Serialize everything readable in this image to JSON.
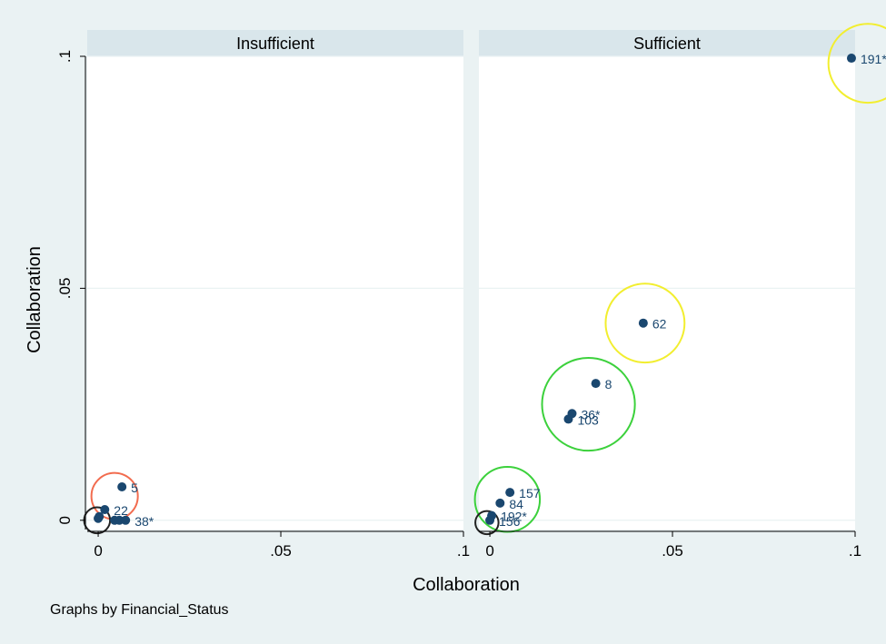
{
  "note": "Graphs by Financial_Status",
  "chart_data": {
    "type": "scatter",
    "by": "Financial_Status",
    "xlabel": "Collaboration",
    "ylabel": "Collaboration",
    "xlim": [
      -0.003,
      0.1
    ],
    "ylim": [
      -0.002,
      0.1
    ],
    "xticks": [
      {
        "value": 0,
        "label": "0"
      },
      {
        "value": 0.05,
        "label": ".05"
      },
      {
        "value": 0.1,
        "label": ".1"
      }
    ],
    "yticks": [
      {
        "value": 0,
        "label": "0"
      },
      {
        "value": 0.05,
        "label": ".05"
      },
      {
        "value": 0.1,
        "label": ".1"
      }
    ],
    "grid": true,
    "panels": [
      {
        "title": "Insufficient",
        "points": [
          {
            "x": 0.0065,
            "y": 0.0072,
            "label": "5"
          },
          {
            "x": 0.0018,
            "y": 0.0023,
            "label": "22"
          },
          {
            "x": 0.0,
            "y": 0.0004,
            "label": ""
          },
          {
            "x": 0.0003,
            "y": 0.0008,
            "label": ""
          },
          {
            "x": 0.0045,
            "y": 0.0,
            "label": ""
          },
          {
            "x": 0.0058,
            "y": 0.0,
            "label": ""
          },
          {
            "x": 0.0075,
            "y": 0.0,
            "label": "38*"
          }
        ],
        "circles": [
          {
            "cx": 0.0045,
            "cy": 0.0052,
            "r": 0.005,
            "color": "#f26c4f"
          },
          {
            "cx": -0.0003,
            "cy": 0.0,
            "r": 0.0028,
            "color": "#222222"
          }
        ]
      },
      {
        "title": "Sufficient",
        "points": [
          {
            "x": 0.099,
            "y": 0.0996,
            "label": "191*"
          },
          {
            "x": 0.042,
            "y": 0.0425,
            "label": "62"
          },
          {
            "x": 0.029,
            "y": 0.0295,
            "label": "8"
          },
          {
            "x": 0.0225,
            "y": 0.023,
            "label": "36*"
          },
          {
            "x": 0.0215,
            "y": 0.0218,
            "label": "103"
          },
          {
            "x": 0.0055,
            "y": 0.006,
            "label": "157"
          },
          {
            "x": 0.0028,
            "y": 0.0037,
            "label": "84"
          },
          {
            "x": 0.0005,
            "y": 0.001,
            "label": "192*"
          },
          {
            "x": 0.0,
            "y": 0.0,
            "label": "156"
          }
        ],
        "circles": [
          {
            "cx": 0.1035,
            "cy": 0.0985,
            "r": 0.0085,
            "color": "#f2ee2f"
          },
          {
            "cx": 0.0425,
            "cy": 0.0425,
            "r": 0.0085,
            "color": "#f2ee2f"
          },
          {
            "cx": 0.027,
            "cy": 0.025,
            "r": 0.01,
            "color": "#3cd13c"
          },
          {
            "cx": 0.0048,
            "cy": 0.0045,
            "r": 0.007,
            "color": "#3cd13c"
          },
          {
            "cx": -0.0008,
            "cy": -0.0005,
            "r": 0.0025,
            "color": "#222222"
          }
        ]
      }
    ]
  }
}
